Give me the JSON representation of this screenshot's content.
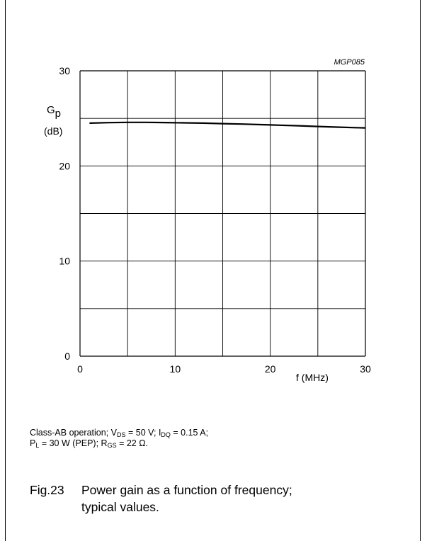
{
  "figure_code": "MGP085",
  "y_axis": {
    "symbol": "G",
    "symbol_sub": "p",
    "unit": "(dB)"
  },
  "x_axis": {
    "label": "f (MHz)"
  },
  "chart_data": {
    "type": "line",
    "title": "",
    "xlabel": "f (MHz)",
    "ylabel": "Gp (dB)",
    "xlim": [
      0,
      30
    ],
    "ylim": [
      0,
      30
    ],
    "x_ticks": [
      0,
      10,
      20,
      30
    ],
    "y_ticks": [
      0,
      10,
      20,
      30
    ],
    "x_grid": [
      0,
      5,
      10,
      15,
      20,
      25,
      30
    ],
    "y_grid": [
      0,
      5,
      10,
      15,
      20,
      25,
      30
    ],
    "grid": true,
    "series": [
      {
        "x": [
          1,
          3,
          5,
          7,
          9,
          11,
          13,
          15,
          17,
          19,
          21,
          23,
          25,
          27,
          29,
          30
        ],
        "y": [
          24.5,
          24.55,
          24.58,
          24.58,
          24.56,
          24.53,
          24.5,
          24.45,
          24.4,
          24.34,
          24.28,
          24.22,
          24.15,
          24.08,
          24.02,
          24.0
        ]
      }
    ]
  },
  "conditions": {
    "line1": [
      {
        "t": "Class-AB operation; V"
      },
      {
        "t": "DS",
        "sub": true
      },
      {
        "t": " = 50 V; I"
      },
      {
        "t": "DQ",
        "sub": true
      },
      {
        "t": " = 0.15 A;"
      }
    ],
    "line2": [
      {
        "t": "P"
      },
      {
        "t": "L",
        "sub": true
      },
      {
        "t": " = 30 W (PEP); R"
      },
      {
        "t": "GS",
        "sub": true
      },
      {
        "t": " = 22 Ω."
      }
    ]
  },
  "caption": {
    "number": "Fig.23",
    "line1": "Power gain as a function of frequency;",
    "line2": "typical values."
  }
}
